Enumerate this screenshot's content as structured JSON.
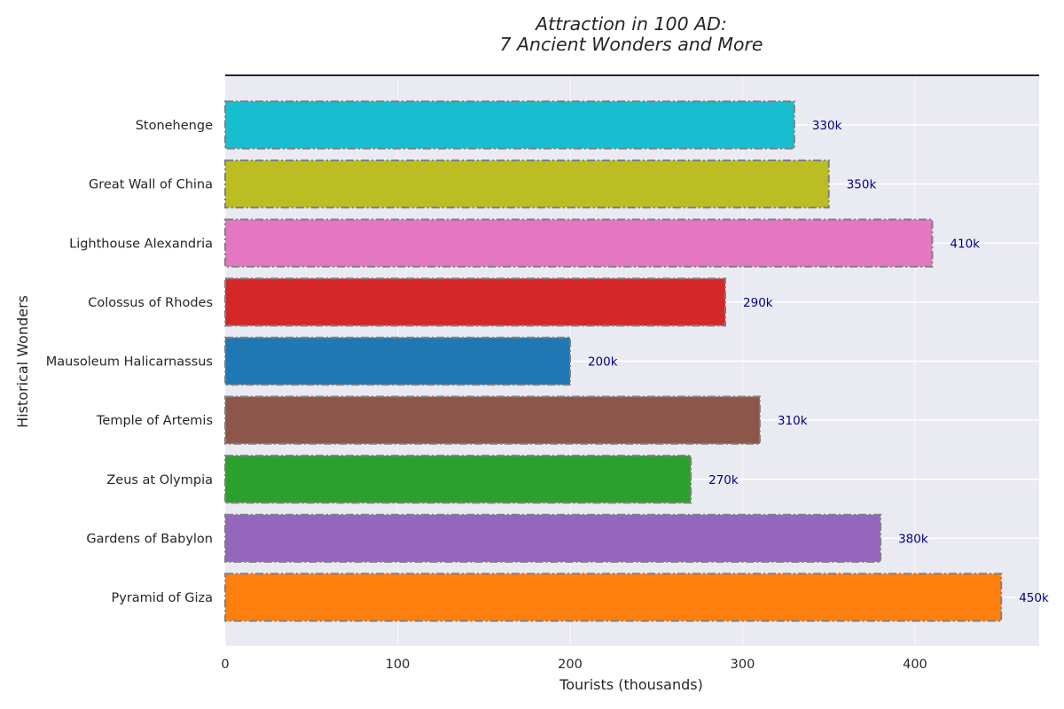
{
  "chart_data": {
    "type": "bar",
    "orientation": "horizontal",
    "title_line1": "Attraction in 100 AD:",
    "title_line2": "7 Ancient Wonders and More",
    "xlabel": "Tourists (thousands)",
    "ylabel": "Historical Wonders",
    "xlim": [
      0,
      472
    ],
    "xticks": [
      0,
      100,
      200,
      300,
      400
    ],
    "grid": true,
    "categories": [
      "Pyramid of Giza",
      "Gardens of Babylon",
      "Zeus at Olympia",
      "Temple of Artemis",
      "Mausoleum Halicarnassus",
      "Colossus of Rhodes",
      "Lighthouse Alexandria",
      "Great Wall of China",
      "Stonehenge"
    ],
    "values": [
      450,
      380,
      270,
      310,
      200,
      290,
      410,
      350,
      330
    ],
    "data_labels": [
      "450k",
      "380k",
      "270k",
      "310k",
      "200k",
      "290k",
      "410k",
      "350k",
      "330k"
    ],
    "colors": [
      "#ff7f0e",
      "#9467bd",
      "#2ca02c",
      "#8c564b",
      "#1f77b4",
      "#d62728",
      "#e377c2",
      "#bcbd22",
      "#17becf"
    ],
    "bar_edge_color": "#808080",
    "data_label_color": "#00008b",
    "plot_background": "#eaeaf2",
    "grid_color": "#ffffff"
  }
}
